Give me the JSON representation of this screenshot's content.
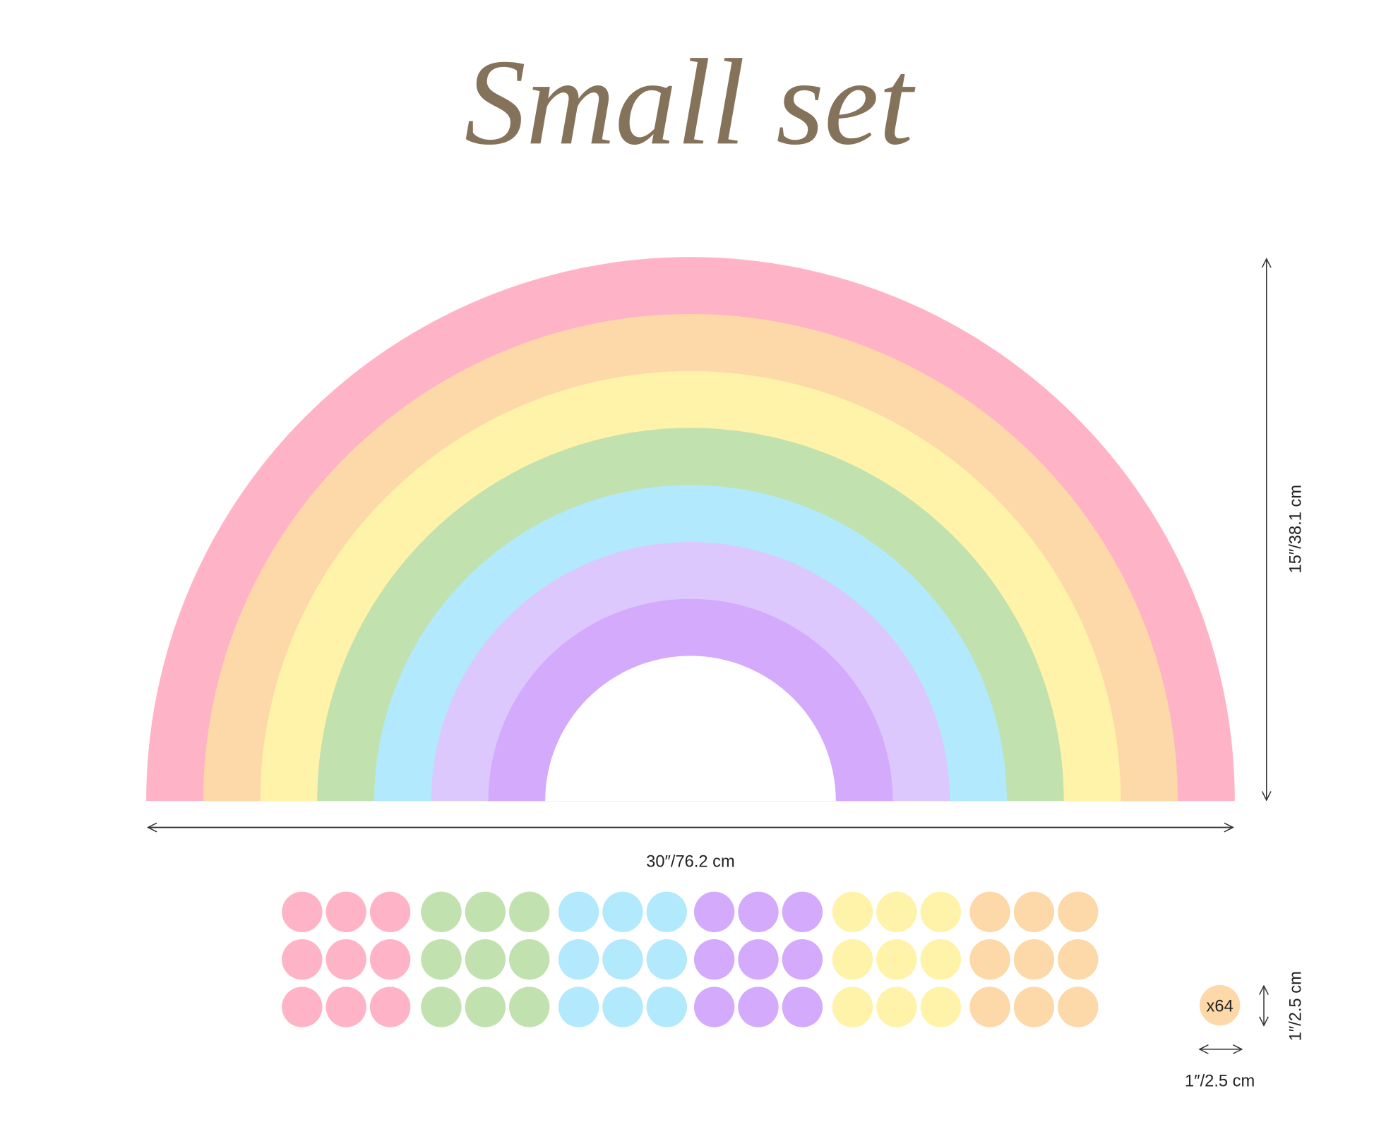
{
  "title": "Small set",
  "rainbow": {
    "band_colors": [
      "#ffb3c6",
      "#fdd8a8",
      "#fef3a8",
      "#c1e1ae",
      "#b2e9fc",
      "#ddc8fe",
      "#d4aafc"
    ]
  },
  "dimensions": {
    "width_label": "30″/76.2 cm",
    "height_label": "15″/38.1 cm"
  },
  "dots": {
    "group_colors": [
      "#ffb3c6",
      "#c1e1ae",
      "#b2e9fc",
      "#d4aafc",
      "#fef3a8",
      "#fdd8a8"
    ],
    "rows": 3,
    "per_group": 3,
    "sample_color": "#fdd8a8",
    "count_label": "x64",
    "size_width_label": "1″/2.5 cm",
    "size_height_label": "1″/2.5 cm"
  }
}
